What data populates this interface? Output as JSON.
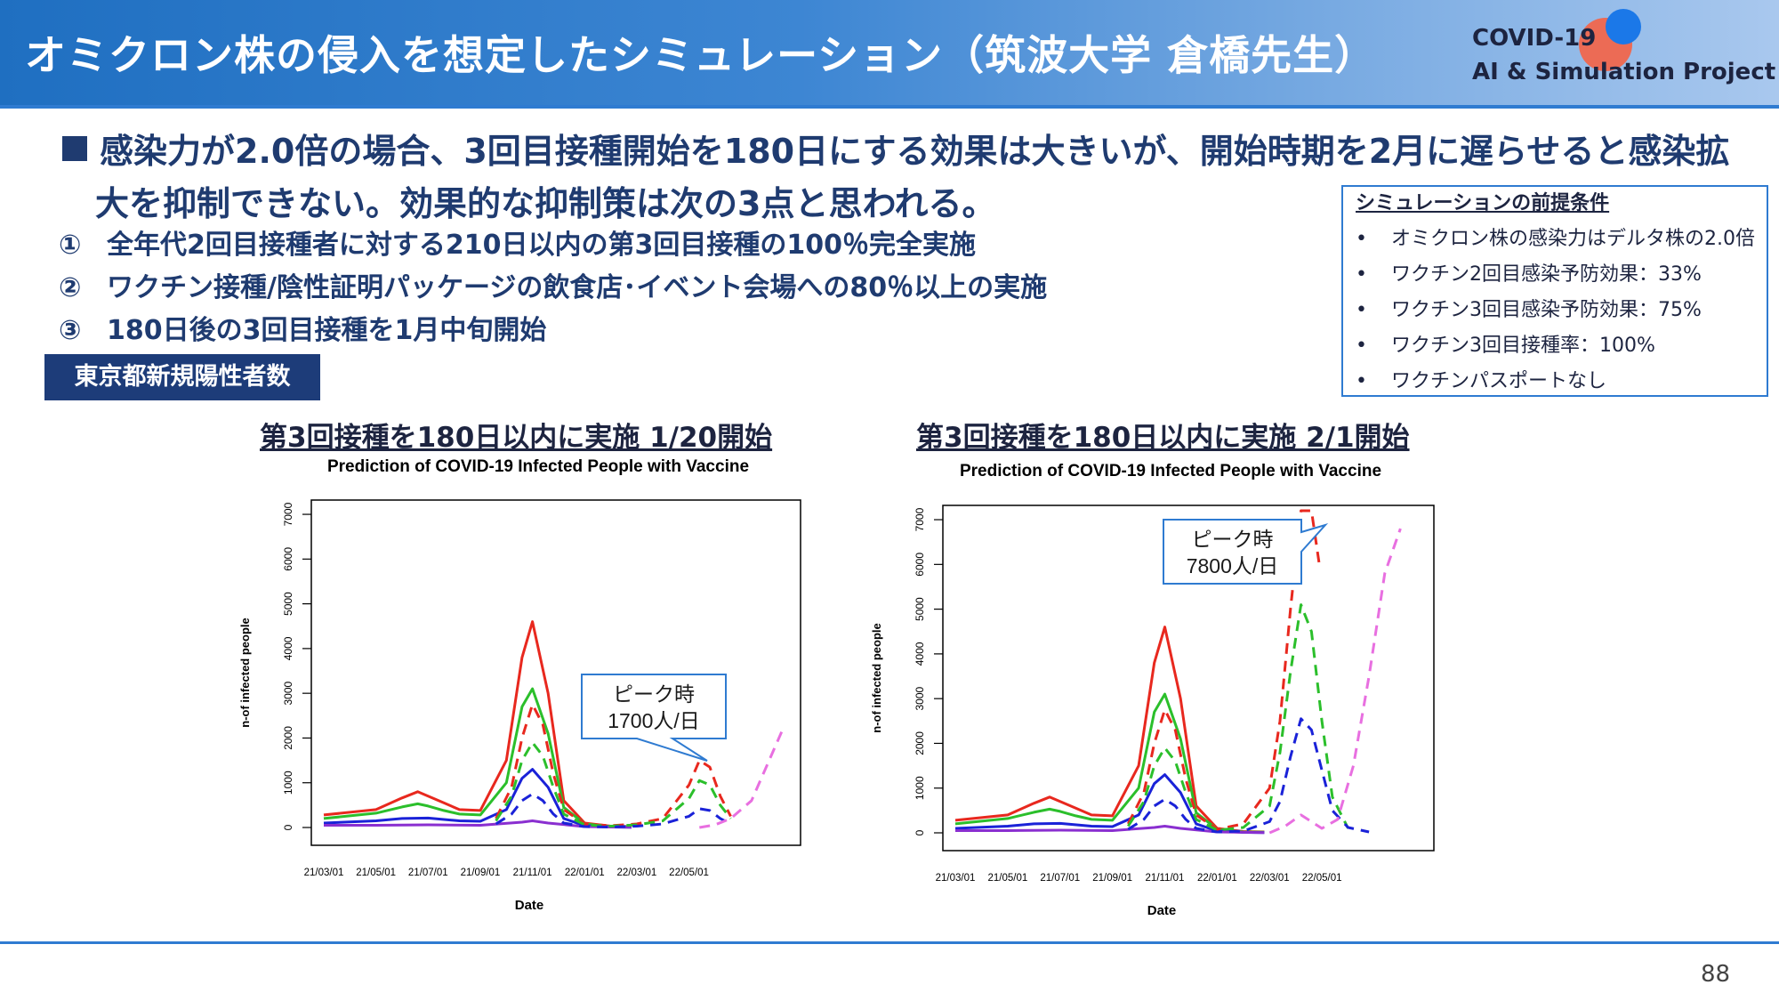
{
  "header": {
    "title": "オミクロン株の侵入を想定したシミュレーション（筑波大学 倉橋先生）",
    "logo_line1": "COVID-19",
    "logo_line2": "AI & Simulation Project"
  },
  "lead": {
    "line1": "感染力が2.0倍の場合、3回目接種開始を180日にする効果は大きいが、開始時期を2月に遅らせると感染拡",
    "line2": "大を抑制できない。効果的な抑制策は次の3点と思われる。"
  },
  "measures": [
    {
      "num": "①",
      "text": "全年代2回目接種者に対する210日以内の第3回目接種の100％完全実施"
    },
    {
      "num": "②",
      "text": "ワクチン接種/陰性証明パッケージの飲食店･イベント会場への80％以上の実施"
    },
    {
      "num": "③",
      "text": "180日後の3回目接種を1月中旬開始"
    }
  ],
  "conditions": {
    "title": "シミュレーションの前提条件",
    "items": [
      "オミクロン株の感染力はデルタ株の2.0倍",
      "ワクチン2回目感染予防効果：33%",
      "ワクチン3回目感染予防効果：75%",
      "ワクチン3回目接種率：100%",
      "ワクチンパスポートなし"
    ],
    "bullet": "•"
  },
  "tag": "東京都新規陽性者数",
  "charts": {
    "left_heading": "第3回接種を180日以内に実施 1/20開始",
    "right_heading": "第3回接種を180日以内に実施 2/1開始"
  },
  "chart_data": [
    {
      "type": "line",
      "title": "Prediction of COVID-19 Infected People with Vaccine",
      "xlabel": "Date",
      "ylabel": "n-of infected people",
      "x_ticks": [
        "21/03/01",
        "21/05/01",
        "21/07/01",
        "21/09/01",
        "21/11/01",
        "22/01/01",
        "22/03/01",
        "22/05/01"
      ],
      "y_ticks": [
        0,
        1000,
        2000,
        3000,
        4000,
        5000,
        6000,
        7000
      ],
      "ylim": [
        0,
        7200
      ],
      "annotation": {
        "line1": "ピーク時",
        "line2": "1700人/日"
      },
      "series": [
        {
          "color": "#e8281e",
          "style": "solid",
          "x": [
            0,
            1,
            1.5,
            1.8,
            2,
            2.3,
            2.6,
            3,
            3.5,
            3.8,
            4,
            4.3,
            4.6,
            5,
            5.5,
            5.9
          ],
          "y": [
            280,
            400,
            660,
            800,
            700,
            550,
            400,
            380,
            1500,
            3800,
            4600,
            3000,
            600,
            100,
            30,
            20
          ]
        },
        {
          "color": "#2bbf2b",
          "style": "solid",
          "x": [
            0,
            1,
            1.5,
            1.8,
            2,
            2.3,
            2.6,
            3,
            3.5,
            3.8,
            4,
            4.3,
            4.6,
            5,
            5.5,
            5.9
          ],
          "y": [
            200,
            320,
            460,
            530,
            480,
            380,
            300,
            280,
            1000,
            2700,
            3100,
            2100,
            450,
            80,
            20,
            15
          ]
        },
        {
          "color": "#1a22d8",
          "style": "solid",
          "x": [
            0,
            1,
            1.5,
            2,
            2.6,
            3,
            3.5,
            3.8,
            4,
            4.3,
            4.6,
            5,
            5.5,
            5.9
          ],
          "y": [
            100,
            150,
            200,
            210,
            150,
            140,
            400,
            1100,
            1300,
            900,
            200,
            40,
            10,
            5
          ]
        },
        {
          "color": "#8a2fd0",
          "style": "solid",
          "x": [
            0,
            1,
            2,
            3,
            3.8,
            4,
            4.3,
            5,
            5.9
          ],
          "y": [
            50,
            50,
            60,
            50,
            120,
            150,
            100,
            20,
            5
          ]
        },
        {
          "color": "#e8281e",
          "style": "dashed",
          "x": [
            3.3,
            3.6,
            3.8,
            4,
            4.2,
            4.4,
            4.6,
            5,
            5.5,
            6,
            6.5,
            7,
            7.2,
            7.4,
            7.6,
            7.8
          ],
          "y": [
            200,
            900,
            2000,
            2750,
            2300,
            1200,
            400,
            80,
            40,
            80,
            200,
            950,
            1500,
            1350,
            700,
            250
          ]
        },
        {
          "color": "#2bbf2b",
          "style": "dashed",
          "x": [
            3.3,
            3.6,
            3.8,
            4,
            4.2,
            4.4,
            4.6,
            5,
            5.5,
            6,
            6.5,
            7,
            7.2,
            7.4,
            7.6,
            7.8
          ],
          "y": [
            150,
            700,
            1500,
            1900,
            1600,
            900,
            300,
            60,
            30,
            60,
            150,
            650,
            1050,
            950,
            500,
            200
          ]
        },
        {
          "color": "#1a22d8",
          "style": "dashed",
          "x": [
            3.3,
            3.6,
            3.8,
            4,
            4.2,
            4.4,
            4.6,
            5,
            5.5,
            6,
            6.5,
            7,
            7.2,
            7.4,
            7.6,
            7.8
          ],
          "y": [
            80,
            300,
            600,
            750,
            600,
            300,
            100,
            20,
            10,
            30,
            80,
            250,
            420,
            380,
            200,
            80
          ]
        },
        {
          "color": "#e86fe0",
          "style": "dashed",
          "x": [
            7.2,
            7.5,
            7.8,
            8.2,
            8.5,
            8.8
          ],
          "y": [
            0,
            60,
            200,
            600,
            1400,
            2200
          ]
        }
      ]
    },
    {
      "type": "line",
      "title": "Prediction of COVID-19 Infected People with Vaccine",
      "xlabel": "Date",
      "ylabel": "n-of infected people",
      "x_ticks": [
        "21/03/01",
        "21/05/01",
        "21/07/01",
        "21/09/01",
        "21/11/01",
        "22/01/01",
        "22/03/01",
        "22/05/01"
      ],
      "y_ticks": [
        0,
        1000,
        2000,
        3000,
        4000,
        5000,
        6000,
        7000
      ],
      "ylim": [
        0,
        7200
      ],
      "annotation": {
        "line1": "ピーク時",
        "line2": "7800人/日"
      },
      "series": [
        {
          "color": "#e8281e",
          "style": "solid",
          "x": [
            0,
            1,
            1.5,
            1.8,
            2,
            2.3,
            2.6,
            3,
            3.5,
            3.8,
            4,
            4.3,
            4.6,
            5,
            5.5,
            5.9
          ],
          "y": [
            280,
            400,
            660,
            800,
            700,
            550,
            400,
            380,
            1500,
            3800,
            4600,
            3000,
            600,
            100,
            30,
            20
          ]
        },
        {
          "color": "#2bbf2b",
          "style": "solid",
          "x": [
            0,
            1,
            1.5,
            1.8,
            2,
            2.3,
            2.6,
            3,
            3.5,
            3.8,
            4,
            4.3,
            4.6,
            5,
            5.5,
            5.9
          ],
          "y": [
            200,
            320,
            460,
            530,
            480,
            380,
            300,
            280,
            1000,
            2700,
            3100,
            2100,
            450,
            80,
            20,
            15
          ]
        },
        {
          "color": "#1a22d8",
          "style": "solid",
          "x": [
            0,
            1,
            1.5,
            2,
            2.6,
            3,
            3.5,
            3.8,
            4,
            4.3,
            4.6,
            5,
            5.5,
            5.9
          ],
          "y": [
            100,
            150,
            200,
            210,
            150,
            140,
            400,
            1100,
            1300,
            900,
            200,
            40,
            10,
            5
          ]
        },
        {
          "color": "#8a2fd0",
          "style": "solid",
          "x": [
            0,
            1,
            2,
            3,
            3.8,
            4,
            4.3,
            5,
            5.9
          ],
          "y": [
            50,
            50,
            60,
            50,
            120,
            150,
            100,
            20,
            5
          ]
        },
        {
          "color": "#e8281e",
          "style": "dashed",
          "x": [
            3.3,
            3.6,
            3.8,
            4,
            4.2,
            4.4,
            4.6,
            5,
            5.5,
            6,
            6.2,
            6.4,
            6.6,
            6.8,
            6.95
          ],
          "y": [
            200,
            900,
            2000,
            2750,
            2300,
            1200,
            400,
            80,
            200,
            1000,
            2500,
            5000,
            7200,
            7200,
            6000
          ]
        },
        {
          "color": "#2bbf2b",
          "style": "dashed",
          "x": [
            3.3,
            3.6,
            3.8,
            4,
            4.2,
            4.4,
            4.6,
            5,
            5.5,
            6,
            6.2,
            6.4,
            6.6,
            6.8,
            7,
            7.2,
            7.5
          ],
          "y": [
            150,
            700,
            1500,
            1900,
            1600,
            900,
            300,
            60,
            120,
            600,
            1800,
            3600,
            5100,
            4500,
            2500,
            800,
            100
          ]
        },
        {
          "color": "#1a22d8",
          "style": "dashed",
          "x": [
            3.3,
            3.6,
            3.8,
            4,
            4.2,
            4.4,
            4.6,
            5,
            5.5,
            6,
            6.2,
            6.4,
            6.6,
            6.8,
            7,
            7.2,
            7.5,
            7.9
          ],
          "y": [
            80,
            300,
            600,
            750,
            600,
            300,
            100,
            20,
            40,
            250,
            700,
            1700,
            2550,
            2300,
            1400,
            500,
            120,
            20
          ]
        },
        {
          "color": "#e86fe0",
          "style": "dashed",
          "x": [
            6.0,
            6.3,
            6.6,
            7,
            7.3,
            7.6,
            7.9,
            8.2,
            8.5
          ],
          "y": [
            0,
            150,
            400,
            100,
            300,
            1500,
            3500,
            5800,
            6800
          ]
        }
      ]
    }
  ],
  "footer": {
    "page": "88"
  }
}
